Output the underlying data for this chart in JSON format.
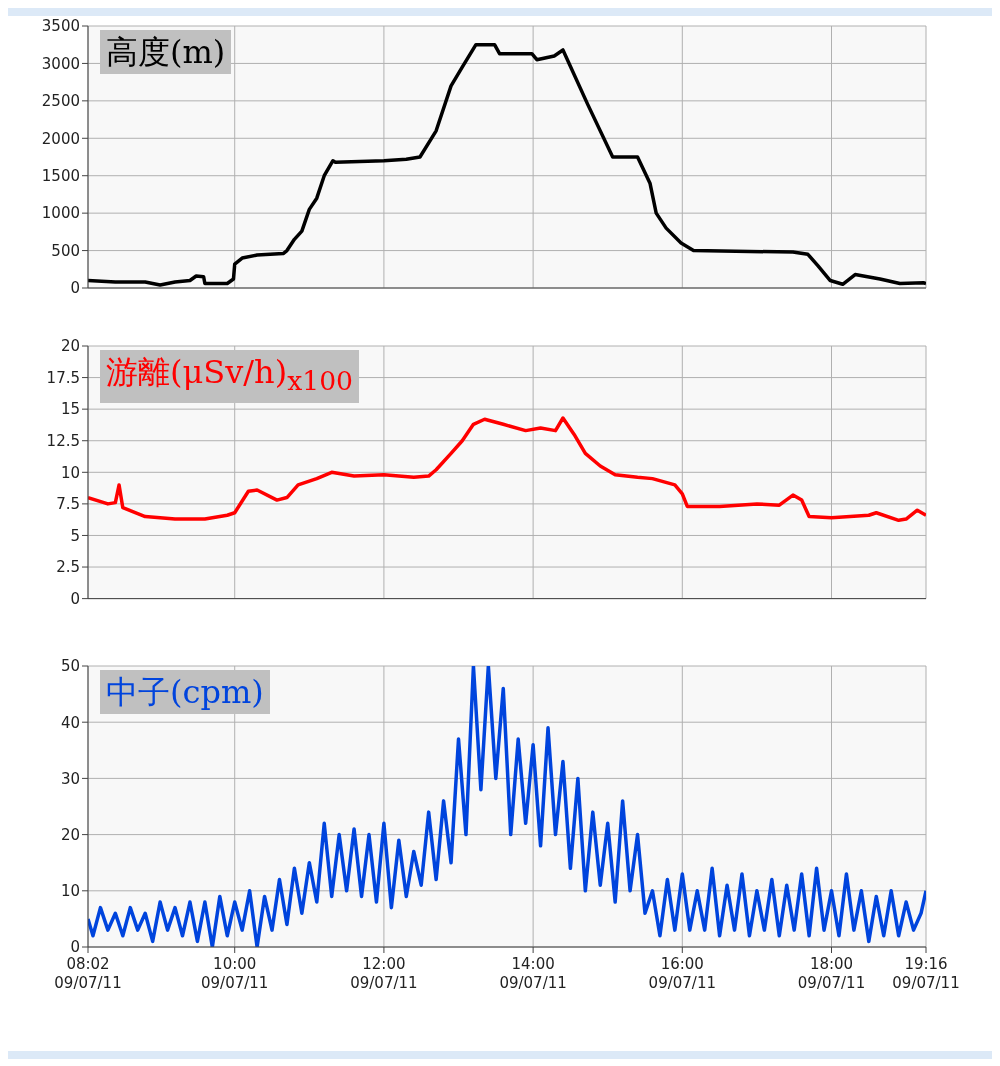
{
  "chart_data": [
    {
      "type": "line",
      "x": [
        "--07-11T08:02",
        "--07-11T08:24",
        "--07-11T08:48",
        "--07-11T09:00",
        "--07-11T09:12",
        "--07-11T09:24",
        "--07-11T09:29",
        "--07-11T09:35",
        "--07-11T09:36",
        "--07-11T09:54",
        "--07-11T09:59",
        "--07-11T10:00",
        "--07-11T10:06",
        "--07-11T10:18",
        "--07-11T10:39",
        "--07-11T10:42",
        "--07-11T10:48",
        "--07-11T10:54",
        "--07-11T11:00",
        "--07-11T11:06",
        "--07-11T11:12",
        "--07-11T11:19",
        "--07-11T11:21",
        "--07-11T12:00",
        "--07-11T12:18",
        "--07-11T12:29",
        "--07-11T12:42",
        "--07-11T12:54",
        "--07-11T13:03",
        "--07-11T13:14",
        "--07-11T13:29",
        "--07-11T13:33",
        "--07-11T13:59",
        "--07-11T14:03",
        "--07-11T14:17",
        "--07-11T14:24",
        "--07-11T14:44",
        "--07-11T15:04",
        "--07-11T15:24",
        "--07-11T15:34",
        "--07-11T15:39",
        "--07-11T15:47",
        "--07-11T15:59",
        "--07-11T16:09",
        "--07-11T17:29",
        "--07-11T17:41",
        "--07-11T17:49",
        "--07-11T17:59",
        "--07-11T18:09",
        "--07-11T18:19",
        "--07-11T18:39",
        "--07-11T18:55",
        "--07-11T19:14",
        "--07-11T19:16"
      ],
      "series": [
        {
          "name": "高度(m)",
          "color": "#000000",
          "values": [
            100,
            80,
            80,
            40,
            80,
            100,
            160,
            150,
            60,
            60,
            120,
            320,
            400,
            440,
            460,
            500,
            650,
            760,
            1050,
            1200,
            1500,
            1700,
            1680,
            1700,
            1720,
            1750,
            2100,
            2700,
            2950,
            3250,
            3250,
            3130,
            3130,
            3050,
            3100,
            3180,
            2450,
            1750,
            1750,
            1400,
            1000,
            800,
            600,
            500,
            480,
            450,
            300,
            100,
            50,
            180,
            120,
            60,
            70,
            60
          ]
        }
      ],
      "xlim": [
        "--07-11T08:02",
        "--07-11T19:16"
      ],
      "xticks": [
        {
          "value": "--07-11T08:02",
          "label": null
        },
        {
          "value": "--07-11T10:00",
          "label": null
        },
        {
          "value": "--07-11T12:00",
          "label": null
        },
        {
          "value": "--07-11T14:00",
          "label": null
        },
        {
          "value": "--07-11T16:00",
          "label": null
        },
        {
          "value": "--07-11T18:00",
          "label": null
        },
        {
          "value": "--07-11T19:16",
          "label": null
        }
      ],
      "ylim": [
        0,
        3500
      ],
      "yticks": [
        0,
        500,
        1000,
        1500,
        2000,
        2500,
        3000,
        3500
      ],
      "grid": true,
      "legend": "top left",
      "tick_labels": "y",
      "marker": "none",
      "line_style": "solid"
    },
    {
      "type": "line",
      "x": [
        "--07-11T08:02",
        "--07-11T08:18",
        "--07-11T08:24",
        "--07-11T08:27",
        "--07-11T08:30",
        "--07-11T08:48",
        "--07-11T09:12",
        "--07-11T09:36",
        "--07-11T09:54",
        "--07-11T10:00",
        "--07-11T10:11",
        "--07-11T10:18",
        "--07-11T10:34",
        "--07-11T10:42",
        "--07-11T10:51",
        "--07-11T11:06",
        "--07-11T11:18",
        "--07-11T11:36",
        "--07-11T12:00",
        "--07-11T12:24",
        "--07-11T12:36",
        "--07-11T12:42",
        "--07-11T12:54",
        "--07-11T13:03",
        "--07-11T13:12",
        "--07-11T13:21",
        "--07-11T13:36",
        "--07-11T13:54",
        "--07-11T14:06",
        "--07-11T14:18",
        "--07-11T14:24",
        "--07-11T14:33",
        "--07-11T14:42",
        "--07-11T14:54",
        "--07-11T15:06",
        "--07-11T15:24",
        "--07-11T15:36",
        "--07-11T15:54",
        "--07-11T16:00",
        "--07-11T16:04",
        "--07-11T16:30",
        "--07-11T17:00",
        "--07-11T17:18",
        "--07-11T17:29",
        "--07-11T17:36",
        "--07-11T17:42",
        "--07-11T18:00",
        "--07-11T18:30",
        "--07-11T18:36",
        "--07-11T18:54",
        "--07-11T19:00",
        "--07-11T19:09",
        "--07-11T19:16"
      ],
      "series": [
        {
          "name": "游離(μSv/h)$_{x100}$",
          "color": "#ff0000",
          "values": [
            8.0,
            7.5,
            7.6,
            9.0,
            7.2,
            6.5,
            6.3,
            6.3,
            6.6,
            6.8,
            8.5,
            8.6,
            7.8,
            8.0,
            9.0,
            9.5,
            10.0,
            9.7,
            9.8,
            9.6,
            9.7,
            10.2,
            11.5,
            12.5,
            13.8,
            14.2,
            13.8,
            13.3,
            13.5,
            13.3,
            14.3,
            13.0,
            11.5,
            10.5,
            9.8,
            9.6,
            9.5,
            9.0,
            8.3,
            7.3,
            7.3,
            7.5,
            7.4,
            8.2,
            7.8,
            6.5,
            6.4,
            6.6,
            6.8,
            6.2,
            6.3,
            7.0,
            6.6
          ]
        }
      ],
      "xlim": [
        "--07-11T08:02",
        "--07-11T19:16"
      ],
      "xticks": [
        {
          "value": "--07-11T08:02",
          "label": null
        },
        {
          "value": "--07-11T10:00",
          "label": null
        },
        {
          "value": "--07-11T12:00",
          "label": null
        },
        {
          "value": "--07-11T14:00",
          "label": null
        },
        {
          "value": "--07-11T16:00",
          "label": null
        },
        {
          "value": "--07-11T18:00",
          "label": null
        },
        {
          "value": "--07-11T19:16",
          "label": null
        }
      ],
      "ylim": [
        0,
        20
      ],
      "yticks": [
        0,
        2.5,
        5,
        7.5,
        10,
        12.5,
        15,
        17.5,
        20
      ],
      "grid": true,
      "legend": "top left",
      "tick_labels": "y",
      "marker": "none",
      "line_style": "solid"
    },
    {
      "type": "line",
      "x": [
        "--07-11T08:02",
        "--07-11T08:06",
        "--07-11T08:12",
        "--07-11T08:18",
        "--07-11T08:24",
        "--07-11T08:30",
        "--07-11T08:36",
        "--07-11T08:42",
        "--07-11T08:48",
        "--07-11T08:54",
        "--07-11T09:00",
        "--07-11T09:06",
        "--07-11T09:12",
        "--07-11T09:18",
        "--07-11T09:24",
        "--07-11T09:30",
        "--07-11T09:36",
        "--07-11T09:42",
        "--07-11T09:48",
        "--07-11T09:54",
        "--07-11T10:00",
        "--07-11T10:06",
        "--07-11T10:12",
        "--07-11T10:18",
        "--07-11T10:24",
        "--07-11T10:30",
        "--07-11T10:36",
        "--07-11T10:42",
        "--07-11T10:48",
        "--07-11T10:54",
        "--07-11T11:00",
        "--07-11T11:06",
        "--07-11T11:12",
        "--07-11T11:18",
        "--07-11T11:24",
        "--07-11T11:30",
        "--07-11T11:36",
        "--07-11T11:42",
        "--07-11T11:48",
        "--07-11T11:54",
        "--07-11T12:00",
        "--07-11T12:06",
        "--07-11T12:12",
        "--07-11T12:18",
        "--07-11T12:24",
        "--07-11T12:30",
        "--07-11T12:36",
        "--07-11T12:42",
        "--07-11T12:48",
        "--07-11T12:54",
        "--07-11T13:00",
        "--07-11T13:06",
        "--07-11T13:12",
        "--07-11T13:18",
        "--07-11T13:24",
        "--07-11T13:30",
        "--07-11T13:36",
        "--07-11T13:42",
        "--07-11T13:48",
        "--07-11T13:54",
        "--07-11T14:00",
        "--07-11T14:06",
        "--07-11T14:12",
        "--07-11T14:18",
        "--07-11T14:24",
        "--07-11T14:30",
        "--07-11T14:36",
        "--07-11T14:42",
        "--07-11T14:48",
        "--07-11T14:54",
        "--07-11T15:00",
        "--07-11T15:06",
        "--07-11T15:12",
        "--07-11T15:18",
        "--07-11T15:24",
        "--07-11T15:30",
        "--07-11T15:36",
        "--07-11T15:42",
        "--07-11T15:48",
        "--07-11T15:54",
        "--07-11T16:00",
        "--07-11T16:06",
        "--07-11T16:12",
        "--07-11T16:18",
        "--07-11T16:24",
        "--07-11T16:30",
        "--07-11T16:36",
        "--07-11T16:42",
        "--07-11T16:48",
        "--07-11T16:54",
        "--07-11T17:00",
        "--07-11T17:06",
        "--07-11T17:12",
        "--07-11T17:18",
        "--07-11T17:24",
        "--07-11T17:30",
        "--07-11T17:36",
        "--07-11T17:42",
        "--07-11T17:48",
        "--07-11T17:54",
        "--07-11T18:00",
        "--07-11T18:06",
        "--07-11T18:12",
        "--07-11T18:18",
        "--07-11T18:24",
        "--07-11T18:30",
        "--07-11T18:36",
        "--07-11T18:42",
        "--07-11T18:48",
        "--07-11T18:54",
        "--07-11T19:00",
        "--07-11T19:06",
        "--07-11T19:12",
        "--07-11T19:16"
      ],
      "series": [
        {
          "name": "中子(cpm)",
          "color": "#0044dd",
          "values": [
            5,
            2,
            7,
            3,
            6,
            2,
            7,
            3,
            6,
            1,
            8,
            3,
            7,
            2,
            8,
            1,
            8,
            0,
            9,
            2,
            8,
            3,
            10,
            0,
            9,
            3,
            12,
            4,
            14,
            6,
            15,
            8,
            22,
            9,
            20,
            10,
            21,
            9,
            20,
            8,
            22,
            7,
            19,
            9,
            17,
            11,
            24,
            12,
            26,
            15,
            37,
            20,
            50,
            28,
            50,
            30,
            46,
            20,
            37,
            22,
            36,
            18,
            39,
            20,
            33,
            14,
            30,
            10,
            24,
            11,
            22,
            8,
            26,
            10,
            20,
            6,
            10,
            2,
            12,
            3,
            13,
            3,
            10,
            3,
            14,
            2,
            11,
            3,
            13,
            2,
            10,
            3,
            12,
            2,
            11,
            3,
            13,
            2,
            14,
            3,
            10,
            2,
            13,
            3,
            10,
            1,
            9,
            2,
            10,
            2,
            8,
            3,
            6,
            10
          ]
        }
      ],
      "xlim": [
        "--07-11T08:02",
        "--07-11T19:16"
      ],
      "xticks": [
        {
          "value": "--07-11T08:02",
          "label": "08:02\n09/07/11"
        },
        {
          "value": "--07-11T10:00",
          "label": "10:00\n09/07/11"
        },
        {
          "value": "--07-11T12:00",
          "label": "12:00\n09/07/11"
        },
        {
          "value": "--07-11T14:00",
          "label": "14:00\n09/07/11"
        },
        {
          "value": "--07-11T16:00",
          "label": "16:00\n09/07/11"
        },
        {
          "value": "--07-11T18:00",
          "label": "18:00\n09/07/11"
        },
        {
          "value": "--07-11T19:16",
          "label": "19:16\n09/07/11"
        }
      ],
      "ylim": [
        0,
        50
      ],
      "yticks": [
        0,
        10,
        20,
        30,
        40,
        50
      ],
      "grid": true,
      "legend": "top left",
      "marker": "none",
      "line_style": "solid"
    }
  ]
}
